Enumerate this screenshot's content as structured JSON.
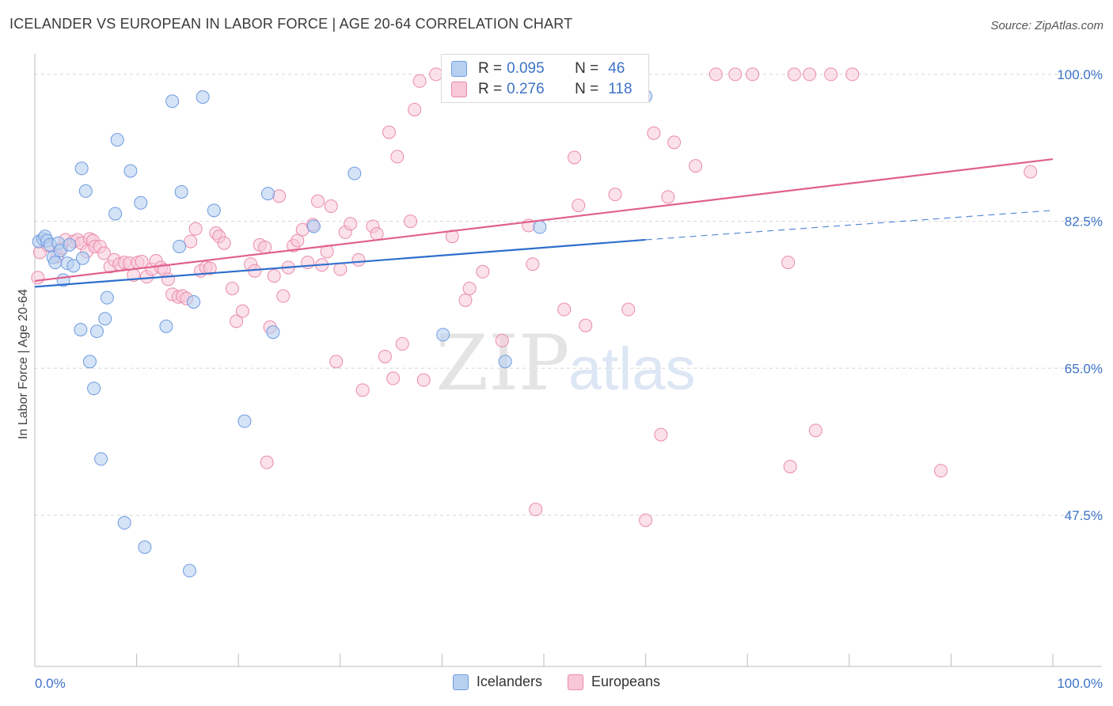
{
  "title": "ICELANDER VS EUROPEAN IN LABOR FORCE | AGE 20-64 CORRELATION CHART",
  "source": "Source: ZipAtlas.com",
  "watermark": {
    "zip": "ZIP",
    "atlas": "atlas"
  },
  "colors": {
    "icelanders_fill": "#b8d0f0",
    "icelanders_stroke": "#6f9be0",
    "icelanders_line": "#2f6fcc",
    "europeans_fill": "#f8c8d8",
    "europeans_stroke": "#ea8aaa",
    "europeans_line": "#e0608f",
    "tick_label": "#3d73c8",
    "grid": "#d5d5d5"
  },
  "stats": {
    "icelanders": {
      "r_label": "R = ",
      "r_value": "0.095",
      "n_label": "N = ",
      "n_value": "46"
    },
    "europeans": {
      "r_label": "R = ",
      "r_value": "0.276",
      "n_label": "N = ",
      "n_value": "118"
    }
  },
  "legend": {
    "icelanders": "Icelanders",
    "europeans": "Europeans"
  },
  "chart_data": {
    "type": "scatter",
    "title": "ICELANDER VS EUROPEAN IN LABOR FORCE | AGE 20-64 CORRELATION CHART",
    "xlabel": "",
    "ylabel": "In Labor Force | Age 20-64",
    "xlim": [
      0,
      100
    ],
    "ylim": [
      29.5,
      101.5
    ],
    "x_tick_labels": [
      "0.0%",
      "100.0%"
    ],
    "y_ticks": [
      47.5,
      65.0,
      82.5,
      100.0
    ],
    "y_tick_labels": [
      "47.5%",
      "65.0%",
      "82.5%",
      "100.0%"
    ],
    "grid": "horizontal dashed",
    "legend_position": "bottom",
    "series": [
      {
        "name": "Icelanders",
        "trend": {
          "x": [
            0,
            60,
            100
          ],
          "y": [
            74.7,
            80.3,
            83.8
          ],
          "solid_until": 60
        },
        "points": [
          [
            0.4,
            80.1
          ],
          [
            0.8,
            80.4
          ],
          [
            1.0,
            80.7
          ],
          [
            1.2,
            80.2
          ],
          [
            1.5,
            79.7
          ],
          [
            1.8,
            78.2
          ],
          [
            2.0,
            77.6
          ],
          [
            2.3,
            79.9
          ],
          [
            2.5,
            79.0
          ],
          [
            2.8,
            75.5
          ],
          [
            3.2,
            77.5
          ],
          [
            3.4,
            79.7
          ],
          [
            3.8,
            77.2
          ],
          [
            4.5,
            69.6
          ],
          [
            4.6,
            88.8
          ],
          [
            4.7,
            78.1
          ],
          [
            5.0,
            86.1
          ],
          [
            5.4,
            65.8
          ],
          [
            5.8,
            62.6
          ],
          [
            6.1,
            69.4
          ],
          [
            6.5,
            54.2
          ],
          [
            6.9,
            70.9
          ],
          [
            7.1,
            73.4
          ],
          [
            7.9,
            83.4
          ],
          [
            8.1,
            92.2
          ],
          [
            8.8,
            46.6
          ],
          [
            9.4,
            88.5
          ],
          [
            10.4,
            84.7
          ],
          [
            10.8,
            43.7
          ],
          [
            12.9,
            70.0
          ],
          [
            13.5,
            96.8
          ],
          [
            14.2,
            79.5
          ],
          [
            14.4,
            86.0
          ],
          [
            15.2,
            40.9
          ],
          [
            15.6,
            72.9
          ],
          [
            16.5,
            97.3
          ],
          [
            17.6,
            83.8
          ],
          [
            20.6,
            58.7
          ],
          [
            22.9,
            85.8
          ],
          [
            23.4,
            69.3
          ],
          [
            27.4,
            81.9
          ],
          [
            31.4,
            88.2
          ],
          [
            40.1,
            69.0
          ],
          [
            46.2,
            65.8
          ],
          [
            49.6,
            81.8
          ],
          [
            60.0,
            97.4
          ]
        ]
      },
      {
        "name": "Europeans",
        "trend": {
          "x": [
            0,
            100
          ],
          "y": [
            75.4,
            89.9
          ]
        },
        "points": [
          [
            0.3,
            75.8
          ],
          [
            0.5,
            78.8
          ],
          [
            1.3,
            79.6
          ],
          [
            2.2,
            78.3
          ],
          [
            2.6,
            79.3
          ],
          [
            3.0,
            80.3
          ],
          [
            3.8,
            80.1
          ],
          [
            4.2,
            80.3
          ],
          [
            4.6,
            79.9
          ],
          [
            5.1,
            78.9
          ],
          [
            5.4,
            80.4
          ],
          [
            5.7,
            80.2
          ],
          [
            5.9,
            79.5
          ],
          [
            6.4,
            79.5
          ],
          [
            6.8,
            78.7
          ],
          [
            7.4,
            77.1
          ],
          [
            7.8,
            77.9
          ],
          [
            8.3,
            77.4
          ],
          [
            8.8,
            77.6
          ],
          [
            9.3,
            77.5
          ],
          [
            9.7,
            76.1
          ],
          [
            10.1,
            77.6
          ],
          [
            10.5,
            77.7
          ],
          [
            11.0,
            75.9
          ],
          [
            11.5,
            76.8
          ],
          [
            11.9,
            77.8
          ],
          [
            12.4,
            77.0
          ],
          [
            12.7,
            76.7
          ],
          [
            13.1,
            75.6
          ],
          [
            13.5,
            73.8
          ],
          [
            14.1,
            73.5
          ],
          [
            14.5,
            73.6
          ],
          [
            14.9,
            73.3
          ],
          [
            15.3,
            80.1
          ],
          [
            15.8,
            81.6
          ],
          [
            16.3,
            76.6
          ],
          [
            16.8,
            77.0
          ],
          [
            17.2,
            76.9
          ],
          [
            17.8,
            81.1
          ],
          [
            18.1,
            80.7
          ],
          [
            18.6,
            79.9
          ],
          [
            19.4,
            74.5
          ],
          [
            19.8,
            70.6
          ],
          [
            20.4,
            71.8
          ],
          [
            21.2,
            77.4
          ],
          [
            21.6,
            76.6
          ],
          [
            22.1,
            79.7
          ],
          [
            22.6,
            79.4
          ],
          [
            23.1,
            69.9
          ],
          [
            23.5,
            76.0
          ],
          [
            24.0,
            85.5
          ],
          [
            24.4,
            73.6
          ],
          [
            24.9,
            77.0
          ],
          [
            25.4,
            79.6
          ],
          [
            25.8,
            80.2
          ],
          [
            26.3,
            81.5
          ],
          [
            26.8,
            77.6
          ],
          [
            27.3,
            82.1
          ],
          [
            27.8,
            84.9
          ],
          [
            28.2,
            77.3
          ],
          [
            28.7,
            78.9
          ],
          [
            29.1,
            84.3
          ],
          [
            29.6,
            65.8
          ],
          [
            30.0,
            76.8
          ],
          [
            30.5,
            81.2
          ],
          [
            31.0,
            82.2
          ],
          [
            31.8,
            77.9
          ],
          [
            32.2,
            62.4
          ],
          [
            33.2,
            81.9
          ],
          [
            33.6,
            81.0
          ],
          [
            34.4,
            66.4
          ],
          [
            34.8,
            93.1
          ],
          [
            35.2,
            63.8
          ],
          [
            35.6,
            90.2
          ],
          [
            36.1,
            67.9
          ],
          [
            36.9,
            82.5
          ],
          [
            37.3,
            95.8
          ],
          [
            37.8,
            99.2
          ],
          [
            38.2,
            63.6
          ],
          [
            39.4,
            100.0
          ],
          [
            41.0,
            80.7
          ],
          [
            42.3,
            73.1
          ],
          [
            42.7,
            74.5
          ],
          [
            43.2,
            97.4
          ],
          [
            44.0,
            76.5
          ],
          [
            45.0,
            100.0
          ],
          [
            45.9,
            68.3
          ],
          [
            48.0,
            100.0
          ],
          [
            48.5,
            82.0
          ],
          [
            49.2,
            48.2
          ],
          [
            50.6,
            100.0
          ],
          [
            52.0,
            72.0
          ],
          [
            53.0,
            90.1
          ],
          [
            53.4,
            84.4
          ],
          [
            54.1,
            70.1
          ],
          [
            56.0,
            100.0
          ],
          [
            57.0,
            85.7
          ],
          [
            58.3,
            72.0
          ],
          [
            60.0,
            46.9
          ],
          [
            60.8,
            93.0
          ],
          [
            61.5,
            57.1
          ],
          [
            62.2,
            85.4
          ],
          [
            62.8,
            91.9
          ],
          [
            64.9,
            89.1
          ],
          [
            66.9,
            100.0
          ],
          [
            68.8,
            100.0
          ],
          [
            70.5,
            100.0
          ],
          [
            74.0,
            77.6
          ],
          [
            74.6,
            100.0
          ],
          [
            76.1,
            100.0
          ],
          [
            78.2,
            100.0
          ],
          [
            80.3,
            100.0
          ],
          [
            97.8,
            88.4
          ],
          [
            48.9,
            77.4
          ],
          [
            22.8,
            53.8
          ],
          [
            89.0,
            52.8
          ],
          [
            74.2,
            53.3
          ],
          [
            76.7,
            57.6
          ]
        ]
      }
    ]
  }
}
